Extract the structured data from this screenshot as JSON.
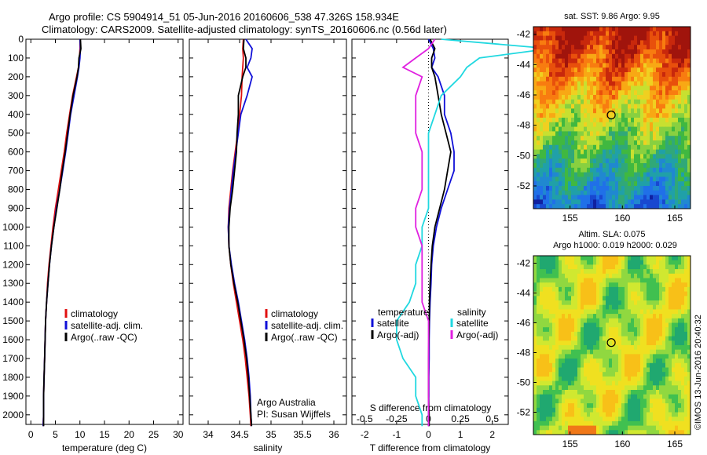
{
  "header": {
    "line1": "Argo profile: CS 5904914_51 05-Jun-2016 20160606_538 47.326S 158.934E",
    "line2": "Climatology: CARS2009. Satellite-adjusted climatology: synTS_20160606.nc (0.56d later)"
  },
  "credit": "©IMOS 13-Jun-2016 20:40:32",
  "colors": {
    "climatology": "#e01010",
    "satellite": "#1010d8",
    "argo": "#000000",
    "sal_satellite": "#20d8e0",
    "sal_argo": "#e020e0"
  },
  "chart_data": [
    {
      "type": "line",
      "panel": "temperature",
      "xlabel": "temperature (deg C)",
      "ylabel": "",
      "xlim": [
        -1,
        31
      ],
      "ylim": [
        2060,
        0
      ],
      "xticks": [
        "0",
        "5",
        "10",
        "15",
        "20",
        "25",
        "30"
      ],
      "yticks": [
        "0",
        "100",
        "200",
        "300",
        "400",
        "500",
        "600",
        "700",
        "800",
        "900",
        "1000",
        "1100",
        "1200",
        "1300",
        "1400",
        "1500",
        "1600",
        "1700",
        "1800",
        "1900",
        "2000"
      ],
      "legend": [
        "climatology",
        "satellite-adj. clim.",
        "Argo(..raw -QC)"
      ],
      "depth": [
        0,
        50,
        100,
        150,
        200,
        300,
        400,
        500,
        600,
        700,
        800,
        900,
        1000,
        1100,
        1200,
        1300,
        1400,
        1500,
        1600,
        1700,
        1800,
        1900,
        2000,
        2060
      ],
      "series": [
        {
          "name": "climatology",
          "values": [
            10.0,
            10.0,
            9.9,
            9.7,
            9.3,
            8.5,
            7.9,
            7.3,
            6.8,
            6.2,
            5.6,
            5.0,
            4.5,
            4.1,
            3.7,
            3.4,
            3.2,
            3.0,
            2.9,
            2.8,
            2.7,
            2.6,
            2.6,
            2.5
          ]
        },
        {
          "name": "satellite-adj. clim.",
          "values": [
            10.0,
            10.1,
            10.0,
            9.8,
            9.5,
            8.8,
            8.1,
            7.6,
            7.1,
            6.5,
            5.9,
            5.2,
            4.7,
            4.2,
            3.8,
            3.5,
            3.2,
            3.0,
            2.9,
            2.8,
            2.7,
            2.6,
            2.6,
            2.5
          ]
        },
        {
          "name": "Argo(..raw -QC)",
          "values": [
            10.1,
            10.2,
            9.8,
            9.7,
            9.4,
            8.6,
            8.0,
            7.5,
            7.0,
            6.4,
            5.9,
            5.3,
            4.7,
            4.2,
            3.8,
            3.5,
            3.2,
            3.0,
            2.9,
            2.8,
            2.7,
            2.6,
            2.6,
            2.6
          ]
        }
      ]
    },
    {
      "type": "line",
      "panel": "salinity",
      "xlabel": "salinity",
      "xlim": [
        33.7,
        36.2
      ],
      "ylim": [
        2060,
        0
      ],
      "xticks": [
        "34",
        "34.5",
        "35",
        "35.5",
        "36"
      ],
      "legend": [
        "climatology",
        "satellite-adj. clim.",
        "Argo(..raw -QC)"
      ],
      "annotations": [
        "Argo Australia",
        "PI: Susan Wijffels"
      ],
      "depth": [
        0,
        50,
        100,
        150,
        200,
        300,
        400,
        500,
        600,
        700,
        800,
        900,
        1000,
        1100,
        1200,
        1300,
        1400,
        1500,
        1600,
        1700,
        1800,
        1900,
        2000,
        2060
      ],
      "series": [
        {
          "name": "climatology",
          "values": [
            34.56,
            34.55,
            34.56,
            34.55,
            34.54,
            34.53,
            34.5,
            34.47,
            34.43,
            34.39,
            34.36,
            34.33,
            34.32,
            34.33,
            34.36,
            34.4,
            34.45,
            34.5,
            34.55,
            34.59,
            34.62,
            34.65,
            34.67,
            34.68
          ]
        },
        {
          "name": "satellite-adj. clim.",
          "values": [
            34.6,
            34.7,
            34.68,
            34.62,
            34.7,
            34.62,
            34.52,
            34.48,
            34.44,
            34.4,
            34.37,
            34.34,
            34.32,
            34.33,
            34.37,
            34.42,
            34.48,
            34.53,
            34.58,
            34.62,
            34.65,
            34.67,
            34.68,
            34.69
          ]
        },
        {
          "name": "Argo(..raw -QC)",
          "values": [
            34.57,
            34.56,
            34.6,
            34.6,
            34.55,
            34.48,
            34.48,
            34.46,
            34.45,
            34.42,
            34.39,
            34.35,
            34.33,
            34.33,
            34.36,
            34.41,
            34.47,
            34.52,
            34.57,
            34.61,
            34.64,
            34.66,
            34.68,
            34.69
          ]
        }
      ]
    },
    {
      "type": "line",
      "panel": "difference",
      "xlabel": "T difference from climatology",
      "xlabel2": "S difference from climatology",
      "xlim": [
        -2.4,
        2.5
      ],
      "ylim": [
        2060,
        0
      ],
      "xticks": [
        "-2",
        "-1",
        "0",
        "1",
        "2"
      ],
      "xticks_s": [
        "-0.5",
        "-0.25",
        "0",
        "0.25",
        "0.5"
      ],
      "legend_headers": [
        "temperature",
        "salinity"
      ],
      "legend": [
        "satellite",
        "Argo(-adj)",
        "satellite",
        "Argo(-adj)"
      ],
      "depth": [
        0,
        50,
        100,
        150,
        200,
        300,
        400,
        500,
        600,
        700,
        800,
        900,
        1000,
        1100,
        1200,
        1300,
        1400,
        1500,
        1600,
        1700,
        1800,
        1900,
        2000,
        2060
      ],
      "series": [
        {
          "name": "temperature satellite",
          "values": [
            0.0,
            0.15,
            0.2,
            0.1,
            0.3,
            0.5,
            0.5,
            0.7,
            0.8,
            0.8,
            0.6,
            0.4,
            0.25,
            0.15,
            0.1,
            0.08,
            0.05,
            0.03,
            0.02,
            0.02,
            0.01,
            0.01,
            0.0,
            0.0
          ]
        },
        {
          "name": "temperature Argo(-adj)",
          "values": [
            0.05,
            0.2,
            0.1,
            0.1,
            0.2,
            0.3,
            0.4,
            0.55,
            0.7,
            0.6,
            0.5,
            0.35,
            0.2,
            0.12,
            0.08,
            0.05,
            0.03,
            0.02,
            0.01,
            0.0,
            0.0,
            0.0,
            0.02,
            0.02
          ]
        },
        {
          "name": "salinity satellite",
          "values": [
            0.1,
            0.95,
            0.4,
            0.3,
            0.25,
            0.1,
            0.05,
            0.0,
            0.0,
            0.0,
            0.0,
            0.0,
            -0.05,
            -0.05,
            -0.1,
            -0.1,
            -0.15,
            -0.25,
            -0.25,
            -0.2,
            -0.1,
            -0.1,
            -0.05,
            -0.05
          ]
        },
        {
          "name": "salinity Argo(-adj)",
          "values": [
            0.05,
            0.0,
            -0.1,
            -0.2,
            -0.05,
            -0.1,
            -0.1,
            -0.1,
            -0.05,
            -0.05,
            -0.05,
            -0.1,
            -0.1,
            -0.05,
            -0.05,
            -0.05,
            -0.05,
            0.0,
            0.0,
            0.0,
            0.0,
            0.0,
            0.0,
            0.0
          ]
        }
      ]
    },
    {
      "type": "heatmap",
      "panel": "sst_map",
      "title": "sat. SST: 9.86  Argo: 9.95",
      "xlim": [
        151.5,
        166.5
      ],
      "ylim": [
        -53.5,
        -41.5
      ],
      "xticks": [
        "155",
        "160",
        "165"
      ],
      "yticks": [
        "-42",
        "-44",
        "-46",
        "-48",
        "-50",
        "-52"
      ],
      "marker": {
        "lon": 158.934,
        "lat": -47.326
      }
    },
    {
      "type": "heatmap",
      "panel": "sla_map",
      "title": "Altim. SLA: 0.075",
      "title2": "Argo h1000: 0.019  h2000: 0.029",
      "xlim": [
        151.5,
        166.5
      ],
      "ylim": [
        -53.5,
        -41.5
      ],
      "xticks": [
        "155",
        "160",
        "165"
      ],
      "yticks": [
        "-42",
        "-44",
        "-46",
        "-48",
        "-50",
        "-52"
      ],
      "marker": {
        "lon": 158.934,
        "lat": -47.326
      }
    }
  ]
}
